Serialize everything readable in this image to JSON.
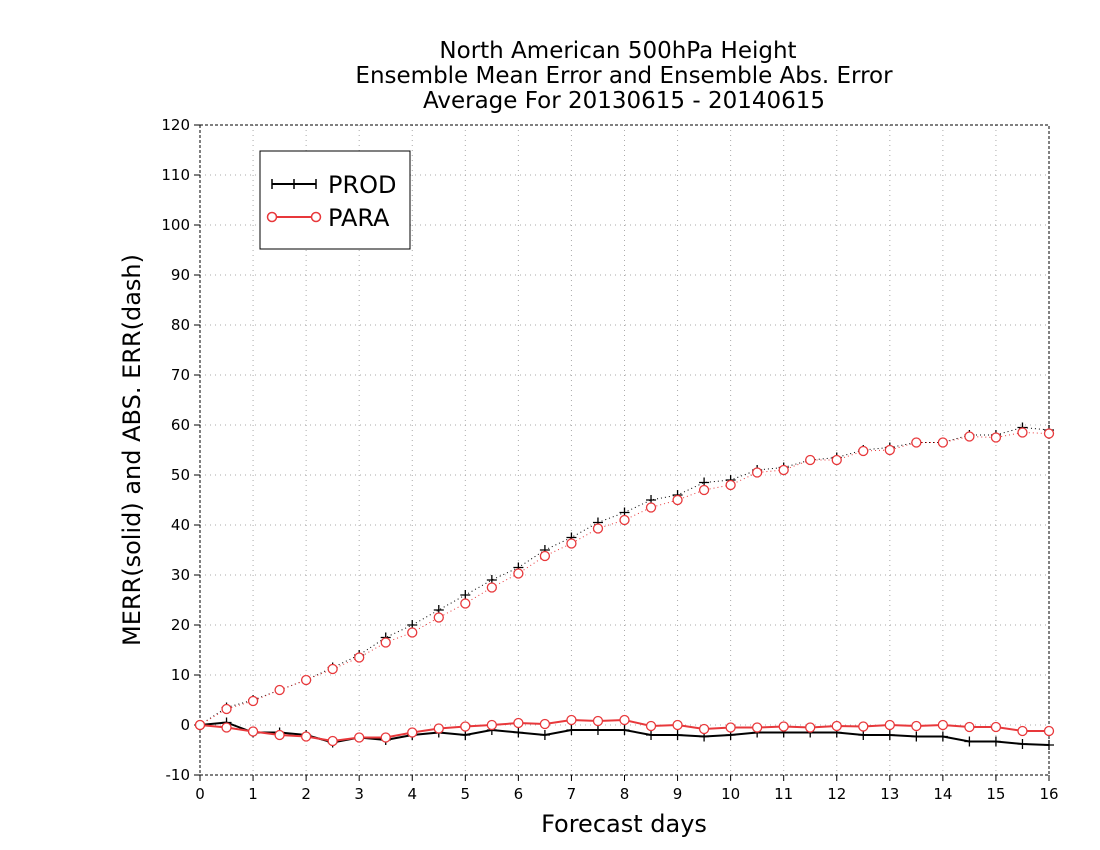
{
  "chart_data": {
    "type": "line",
    "title": [
      "North American 500hPa Height",
      "Ensemble Mean Error and Ensemble Abs. Error",
      "Average For 20130615 - 20140615"
    ],
    "xlabel": "Forecast days",
    "ylabel": "MERR(solid) and ABS. ERR(dash)",
    "xlim": [
      0,
      16
    ],
    "ylim": [
      -10,
      120
    ],
    "x_ticks": [
      0,
      1,
      2,
      3,
      4,
      5,
      6,
      7,
      8,
      9,
      10,
      11,
      12,
      13,
      14,
      15,
      16
    ],
    "y_ticks": [
      -10,
      0,
      10,
      20,
      30,
      40,
      50,
      60,
      70,
      80,
      90,
      100,
      110,
      120
    ],
    "grid": true,
    "legend_position": "top-left",
    "x": [
      0,
      0.5,
      1,
      1.5,
      2,
      2.5,
      3,
      3.5,
      4,
      4.5,
      5,
      5.5,
      6,
      6.5,
      7,
      7.5,
      8,
      8.5,
      9,
      9.5,
      10,
      10.5,
      11,
      11.5,
      12,
      12.5,
      13,
      13.5,
      14,
      14.5,
      15,
      15.5,
      16
    ],
    "series": [
      {
        "name": "PROD",
        "color": "#000000",
        "marker": "plus",
        "merr": [
          0,
          0.5,
          -1.5,
          -1.5,
          -2,
          -3.5,
          -2.5,
          -3,
          -2,
          -1.5,
          -2,
          -1,
          -1.5,
          -2,
          -1,
          -1,
          -1,
          -2,
          -2,
          -2.3,
          -2,
          -1.5,
          -1.5,
          -1.5,
          -1.5,
          -2,
          -2,
          -2.3,
          -2.3,
          -3.3,
          -3.3,
          -3.8,
          -4
        ],
        "abs_err": [
          0,
          3.5,
          5,
          7,
          9,
          11.5,
          14,
          17.5,
          20,
          23,
          26,
          29,
          31.5,
          35,
          37.5,
          40.5,
          42.5,
          45,
          46,
          48.5,
          49,
          51,
          51.5,
          53,
          53.5,
          55,
          55.5,
          56.5,
          56.5,
          58,
          58,
          59.5,
          59
        ]
      },
      {
        "name": "PARA",
        "color": "#e8383b",
        "marker": "circle",
        "merr": [
          0,
          -0.5,
          -1.3,
          -2,
          -2.3,
          -3.2,
          -2.5,
          -2.5,
          -1.5,
          -0.7,
          -0.3,
          0,
          0.4,
          0.2,
          1,
          0.8,
          1,
          -0.2,
          0,
          -0.8,
          -0.5,
          -0.5,
          -0.3,
          -0.5,
          -0.2,
          -0.3,
          0,
          -0.2,
          0,
          -0.4,
          -0.4,
          -1.2,
          -1.2
        ],
        "abs_err": [
          0,
          3.2,
          4.8,
          7,
          9,
          11.2,
          13.5,
          16.5,
          18.5,
          21.5,
          24.3,
          27.5,
          30.3,
          33.8,
          36.3,
          39.3,
          41,
          43.5,
          45,
          47,
          48,
          50.5,
          51,
          53,
          53,
          54.8,
          55,
          56.5,
          56.5,
          57.7,
          57.5,
          58.5,
          58.3
        ]
      }
    ]
  }
}
